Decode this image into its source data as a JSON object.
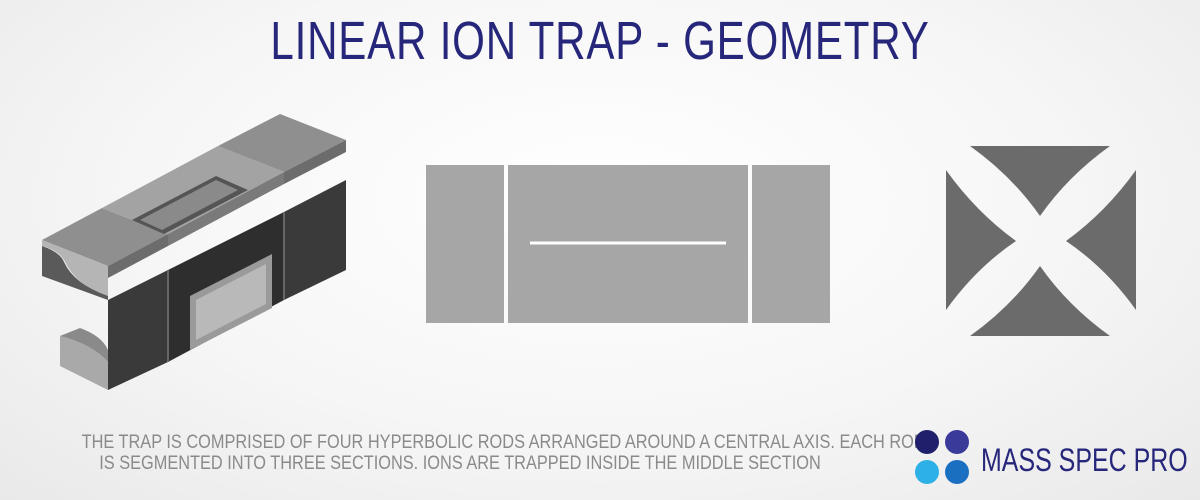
{
  "title": "LINEAR ION TRAP - GEOMETRY",
  "caption": {
    "line1": "THE TRAP IS COMPRISED OF FOUR HYPERBOLIC RODS ARRANGED AROUND A CENTRAL AXIS.  EACH ROD",
    "line2": "IS SEGMENTED INTO THREE SECTIONS. IONS ARE TRAPPED INSIDE THE MIDDLE SECTION"
  },
  "brand": {
    "name": "MASS SPEC PRO",
    "dot_colors": [
      "#1f1f6b",
      "#3a3a9a",
      "#2db0e6",
      "#1a6fc0"
    ]
  },
  "colors": {
    "title": "#26277a",
    "rod_face_light": "#a9a9a9",
    "rod_face_dark": "#3c3c3c",
    "rod_top": "#9d9d9d",
    "side_view_fill": "#a6a6a6",
    "cross_section_fill": "#6b6b6b"
  }
}
